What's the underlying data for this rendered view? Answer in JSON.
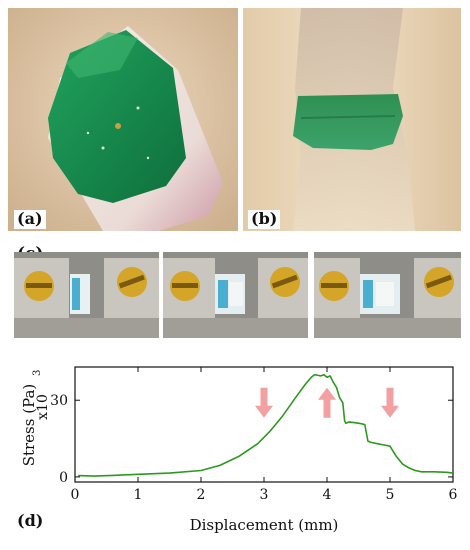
{
  "panel_labels": {
    "a": "(a)",
    "b": "(b)",
    "c": "(c)",
    "d": "(d)"
  },
  "colors": {
    "curve": "#2c9a1e",
    "arrow": "#f2a0a2",
    "tissue": "#e7d3b8",
    "dye": "#1e8a4a",
    "steel": "#b9b6b0",
    "screw": "#d8a81e"
  },
  "chart_data": {
    "type": "line",
    "xlabel": "Displacement (mm)",
    "ylabel": "Stress (Pa)",
    "y_multiplier": "x10",
    "y_multiplier_exp": "3",
    "xlim": [
      0,
      6
    ],
    "ylim": [
      -2,
      43
    ],
    "x_ticks": [
      0,
      1,
      2,
      3,
      4,
      5,
      6
    ],
    "x_tick_labels": [
      "0",
      "1",
      "2",
      "3",
      "4",
      "5",
      "6"
    ],
    "y_ticks": [
      0,
      30
    ],
    "y_tick_labels": [
      "0",
      "30"
    ],
    "x": [
      0.05,
      0.3,
      0.6,
      1.0,
      1.5,
      2.0,
      2.3,
      2.6,
      2.9,
      3.1,
      3.3,
      3.5,
      3.65,
      3.75,
      3.8,
      3.9,
      3.95,
      4.0,
      4.05,
      4.1,
      4.15,
      4.2,
      4.25,
      4.28,
      4.3,
      4.35,
      4.5,
      4.6,
      4.65,
      4.7,
      4.8,
      4.9,
      5.0,
      5.05,
      5.1,
      5.2,
      5.3,
      5.4,
      5.5,
      5.7,
      5.9,
      6.0
    ],
    "y": [
      0.5,
      0.3,
      0.6,
      1.0,
      1.5,
      2.5,
      4.5,
      8.0,
      13.0,
      18.0,
      24.0,
      31.0,
      36.0,
      39.0,
      40.0,
      39.5,
      40.0,
      39.0,
      39.5,
      37.0,
      35.0,
      31.0,
      29.0,
      22.0,
      21.0,
      21.5,
      21.0,
      20.5,
      14.0,
      13.5,
      13.0,
      12.5,
      12.0,
      10.0,
      8.0,
      5.0,
      3.5,
      2.5,
      2.0,
      2.0,
      1.8,
      1.5
    ],
    "annotations": [
      {
        "shape": "arrow-down",
        "x": 3.0,
        "y": 29
      },
      {
        "shape": "arrow-up",
        "x": 4.0,
        "y": 29
      },
      {
        "shape": "arrow-down",
        "x": 5.0,
        "y": 29
      }
    ]
  }
}
